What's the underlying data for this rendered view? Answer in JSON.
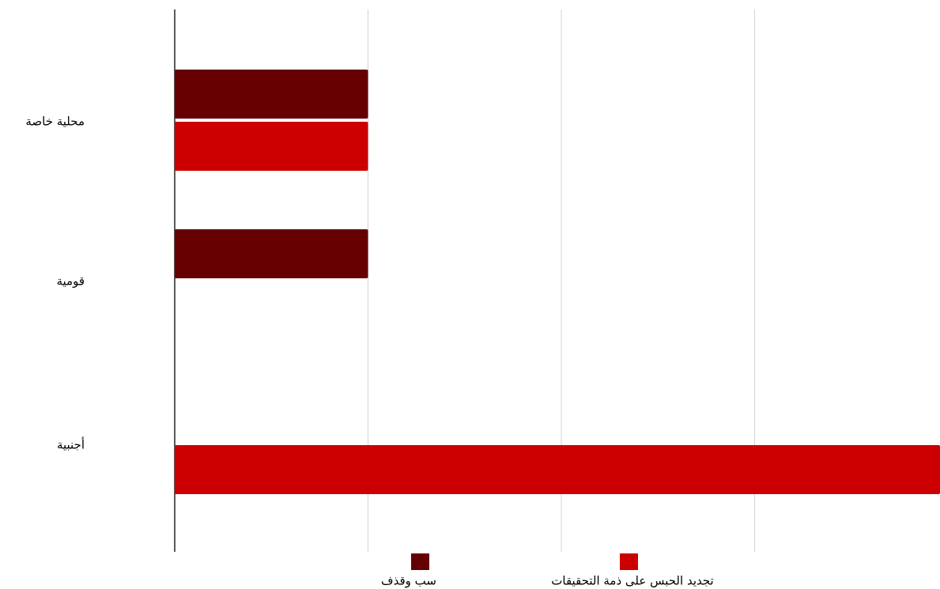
{
  "chart_data": {
    "type": "bar",
    "orientation": "horizontal",
    "categories": [
      "محلية خاصة",
      "قومية",
      "أجنبية"
    ],
    "series": [
      {
        "name": "سب وقذف",
        "color": "#660000",
        "values": [
          1,
          1,
          0
        ]
      },
      {
        "name": "تجديد الحبس على ذمة التحقيقات",
        "color": "#cc0000",
        "values": [
          1,
          0,
          4
        ]
      }
    ],
    "xlim": [
      0,
      4
    ],
    "grid": true,
    "legend_position": "bottom"
  }
}
